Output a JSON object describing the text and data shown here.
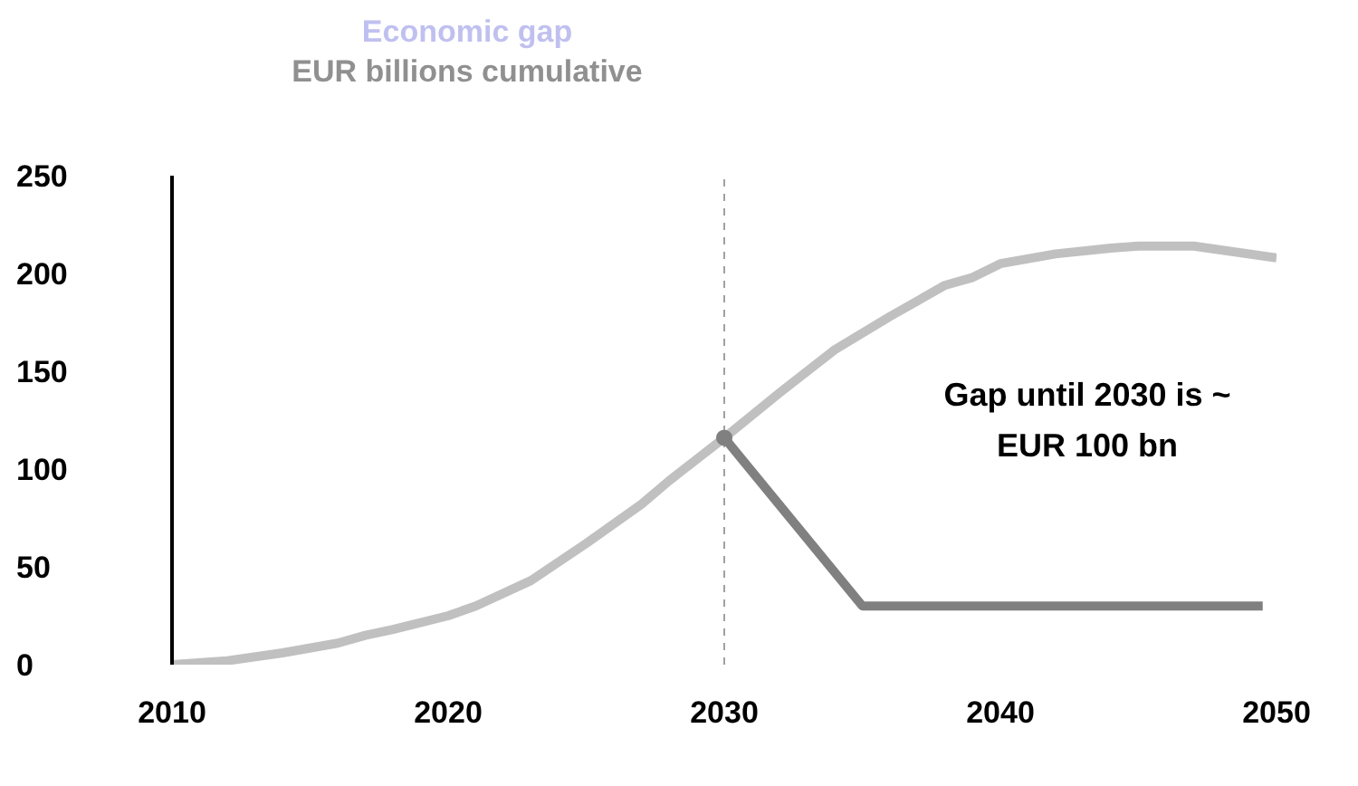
{
  "chart_data": {
    "type": "line",
    "title": "Economic gap",
    "subtitle": "EUR billions cumulative",
    "xlim": [
      2010,
      2050
    ],
    "xticks": [
      2010,
      2020,
      2030,
      2040,
      2050
    ],
    "ylim": [
      0,
      250
    ],
    "yticks": [
      0,
      50,
      100,
      150,
      200,
      250
    ],
    "grid": false,
    "legend": false,
    "marker": "none",
    "line_style": "solid",
    "series": [
      {
        "color": "#c0c0c0",
        "x": [
          2010,
          2012,
          2014,
          2016,
          2017,
          2018,
          2020,
          2021,
          2023,
          2025,
          2027,
          2028,
          2030,
          2032,
          2034,
          2036,
          2038,
          2039,
          2040,
          2042,
          2044,
          2045,
          2047,
          2050
        ],
        "values": [
          0,
          2,
          6,
          11,
          15,
          18,
          25,
          30,
          43,
          62,
          82,
          94,
          116,
          139,
          161,
          178,
          194,
          198,
          205,
          210,
          213,
          214,
          214,
          208
        ]
      },
      {
        "color": "#808080",
        "x": [
          2030,
          2035,
          2049.5
        ],
        "values": [
          116,
          30,
          30
        ]
      },
      {
        "type": "scatter",
        "color": "#808080",
        "marker": "circle",
        "x": [
          2030
        ],
        "values": [
          116
        ]
      }
    ],
    "ref_lines": [
      {
        "axis": "x",
        "value": 2030,
        "color": "#a0a0a0",
        "line_style": "dashed"
      }
    ],
    "annotations": [
      "Gap until 2030 is ~ EUR 100 bn"
    ]
  }
}
